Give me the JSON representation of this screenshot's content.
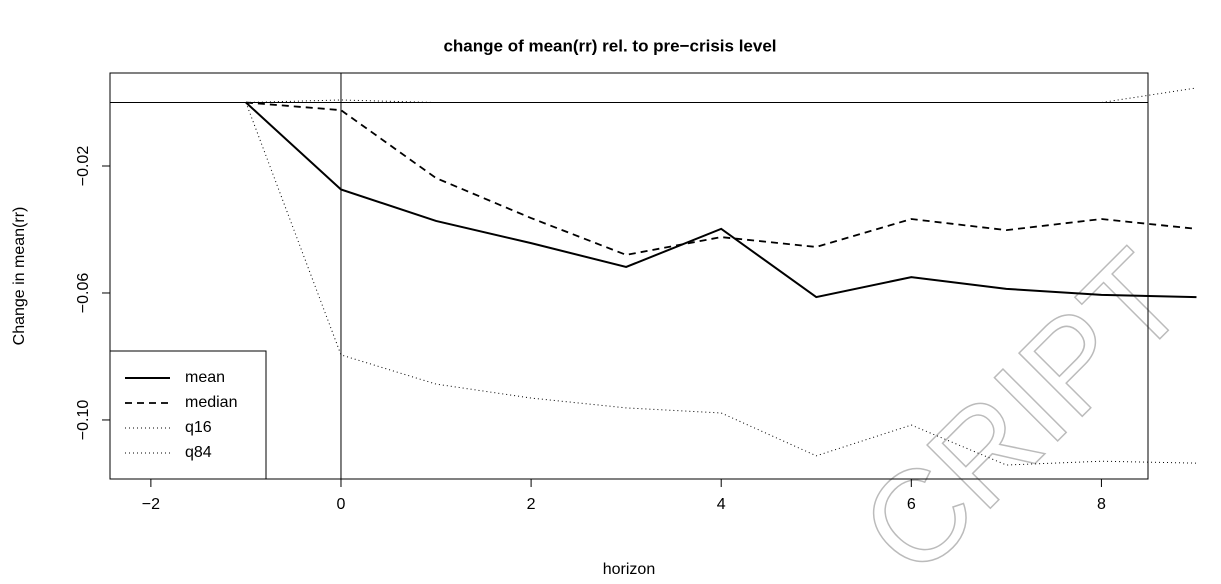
{
  "chart_data": {
    "type": "line",
    "title": "change of mean(rr) rel. to pre−crisis level",
    "x_label": "horizon",
    "y_label": "Change in mean(rr)",
    "x": [
      -1,
      0,
      1,
      2,
      3,
      4,
      5,
      6,
      7,
      8,
      9
    ],
    "series": [
      {
        "name": "mean",
        "color": "#000000",
        "dash": "solid",
        "values": [
          0,
          -0.0274,
          -0.0373,
          -0.0443,
          -0.0518,
          -0.0398,
          -0.0613,
          -0.055,
          -0.0587,
          -0.0606,
          -0.0613
        ]
      },
      {
        "name": "median",
        "color": "#000000",
        "dash": "dashed",
        "values": [
          0,
          -0.0024,
          -0.0238,
          -0.0364,
          -0.048,
          -0.0424,
          -0.0455,
          -0.0367,
          -0.0402,
          -0.0367,
          -0.0398
        ]
      },
      {
        "name": "q16",
        "color": "#000000",
        "dash": "dotted",
        "values": [
          0,
          -0.0795,
          -0.0887,
          -0.0931,
          -0.0962,
          -0.0978,
          -0.1113,
          -0.1016,
          -0.1142,
          -0.113,
          -0.1136
        ]
      },
      {
        "name": "q84",
        "color": "#000000",
        "dash": "dotted",
        "values": [
          0,
          0.0008,
          0,
          0,
          0,
          0,
          0,
          0,
          0,
          0,
          0.0046
        ]
      }
    ],
    "xlim": [
      -2.43,
      8.49
    ],
    "ylim": [
      -0.1186,
      0.0093
    ],
    "xticks": [
      {
        "value": -2,
        "label": "−2"
      },
      0,
      2,
      4,
      6,
      8
    ],
    "yticks": [
      {
        "value": -0.02,
        "label": "−0.02"
      },
      {
        "value": -0.06,
        "label": "−0.06"
      },
      {
        "value": -0.1,
        "label": "−0.10"
      }
    ],
    "reference_lines": {
      "x": 0,
      "y": 0
    },
    "legend": "bottom-left",
    "watermark": "CRIPT"
  }
}
